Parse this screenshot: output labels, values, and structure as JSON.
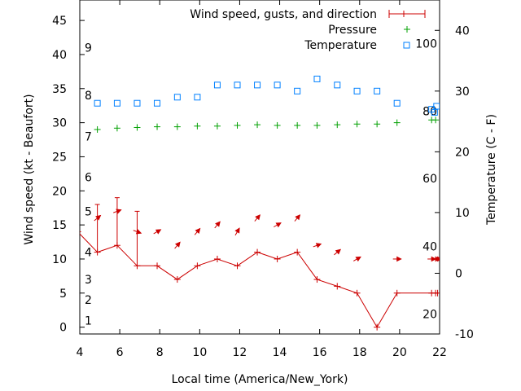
{
  "chart_data": {
    "type": "line",
    "xlabel": "Local time (America/New_York)",
    "ylabel_left": "Wind speed (kt - Beaufort)",
    "ylabel_right": "Temperature (C - F)",
    "xlim": [
      4,
      22
    ],
    "ylim_left": [
      -1,
      48
    ],
    "ylim_right_celsius": [
      -10,
      45
    ],
    "x_ticks": [
      4,
      6,
      8,
      10,
      12,
      14,
      16,
      18,
      20,
      22
    ],
    "y_ticks_left": [
      0,
      5,
      10,
      15,
      20,
      25,
      30,
      35,
      40,
      45
    ],
    "y_ticks_right_celsius": [
      -10,
      0,
      10,
      20,
      30,
      40
    ],
    "beaufort_labels": [
      {
        "label": "1",
        "speed_kt": 1
      },
      {
        "label": "2",
        "speed_kt": 4
      },
      {
        "label": "3",
        "speed_kt": 7
      },
      {
        "label": "4",
        "speed_kt": 11
      },
      {
        "label": "5",
        "speed_kt": 17
      },
      {
        "label": "6",
        "speed_kt": 22
      },
      {
        "label": "7",
        "speed_kt": 28
      },
      {
        "label": "8",
        "speed_kt": 34
      },
      {
        "label": "9",
        "speed_kt": 41
      }
    ],
    "fahrenheit_labels": [
      {
        "label": "20",
        "celsius": -6.7
      },
      {
        "label": "40",
        "celsius": 4.4
      },
      {
        "label": "60",
        "celsius": 15.6
      },
      {
        "label": "80",
        "celsius": 26.7
      },
      {
        "label": "100",
        "celsius": 37.8
      }
    ],
    "legend_position": "top-right",
    "series": [
      {
        "name": "Wind speed, gusts, and direction",
        "kind": "wind",
        "color": "#cc0000",
        "x": [
          3.9,
          4.88,
          5.87,
          6.87,
          7.87,
          8.88,
          9.88,
          10.88,
          11.88,
          12.88,
          13.88,
          14.88,
          15.87,
          16.88,
          17.87,
          18.87,
          19.87,
          21.6,
          21.8,
          21.9
        ],
        "y": [
          14,
          11,
          12,
          9,
          9,
          7,
          9,
          10,
          9,
          11,
          10,
          11,
          7,
          6,
          5,
          0,
          5,
          5,
          5,
          5
        ],
        "gusts": [
          null,
          18,
          19,
          17,
          null,
          null,
          null,
          null,
          null,
          null,
          null,
          null,
          null,
          null,
          null,
          null,
          null,
          null,
          null,
          null
        ],
        "direction_deg": [
          null,
          230,
          250,
          290,
          240,
          220,
          220,
          220,
          210,
          220,
          240,
          220,
          250,
          230,
          240,
          240,
          270,
          270,
          270,
          270
        ]
      },
      {
        "name": "Pressure",
        "kind": "pressure",
        "color": "#00a000",
        "x": [
          4.88,
          5.87,
          6.87,
          7.87,
          8.88,
          9.88,
          10.88,
          11.88,
          12.88,
          13.88,
          14.88,
          15.87,
          16.88,
          17.87,
          18.87,
          19.87,
          21.6,
          21.8
        ],
        "y": [
          29,
          29.2,
          29.3,
          29.4,
          29.4,
          29.5,
          29.5,
          29.6,
          29.7,
          29.6,
          29.6,
          29.6,
          29.7,
          29.8,
          29.8,
          30.0,
          30.4,
          30.4
        ]
      },
      {
        "name": "Temperature",
        "kind": "temperature",
        "color": "#0080ff",
        "x": [
          4.88,
          5.87,
          6.87,
          7.87,
          8.88,
          9.88,
          10.88,
          11.88,
          12.88,
          13.88,
          14.88,
          15.87,
          16.88,
          17.87,
          18.87,
          19.87,
          21.6,
          21.75,
          21.85
        ],
        "y": [
          28,
          28,
          28,
          28,
          29,
          29,
          31,
          31,
          31,
          31,
          30,
          32,
          31,
          30,
          30,
          28,
          27,
          26.5,
          27.5
        ]
      }
    ]
  }
}
